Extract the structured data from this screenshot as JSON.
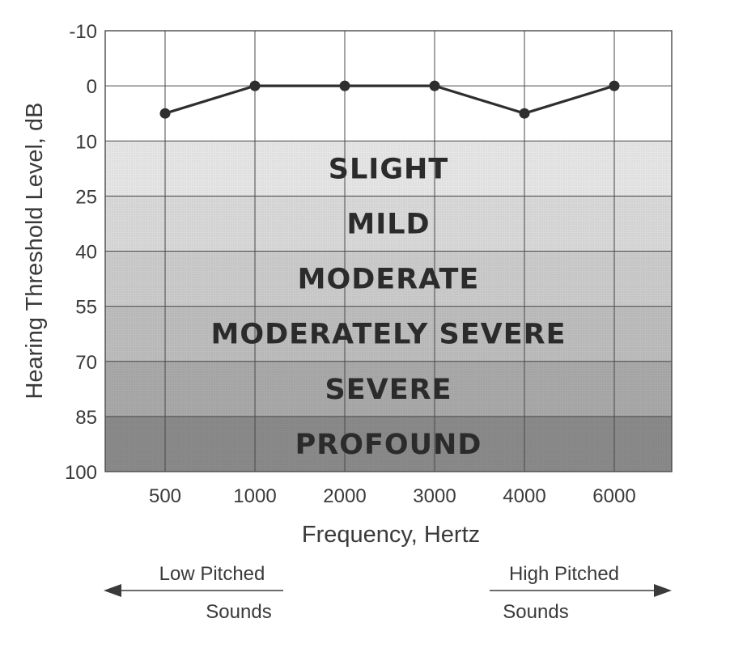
{
  "chart_data": {
    "type": "line",
    "title": "",
    "xlabel": "Frequency, Hertz",
    "ylabel": "Hearing Threshold Level, dB",
    "x_categories": [
      "500",
      "1000",
      "2000",
      "3000",
      "4000",
      "6000"
    ],
    "y_ticks": [
      -10,
      0,
      10,
      25,
      40,
      55,
      70,
      85,
      100
    ],
    "ylim": [
      -10,
      100
    ],
    "y_inverted": true,
    "grid": true,
    "series": [
      {
        "values": [
          5,
          0,
          0,
          0,
          5,
          0
        ]
      }
    ],
    "bands": [
      {
        "label": "SLIGHT",
        "from": 10,
        "to": 25,
        "color": "#e6e6e6"
      },
      {
        "label": "MILD",
        "from": 25,
        "to": 40,
        "color": "#d9d9d9"
      },
      {
        "label": "MODERATE",
        "from": 40,
        "to": 55,
        "color": "#cbcbcb"
      },
      {
        "label": "MODERATELY SEVERE",
        "from": 55,
        "to": 70,
        "color": "#bdbdbd"
      },
      {
        "label": "SEVERE",
        "from": 70,
        "to": 85,
        "color": "#a9a9a9"
      },
      {
        "label": "PROFOUND",
        "from": 85,
        "to": 100,
        "color": "#8a8a8a"
      }
    ],
    "annotations": {
      "low": {
        "top": "Low Pitched",
        "bottom": "Sounds"
      },
      "high": {
        "top": "High Pitched",
        "bottom": "Sounds"
      }
    },
    "colors": {
      "line": "#2e2e2e",
      "grid": "#4a4a4a"
    }
  }
}
